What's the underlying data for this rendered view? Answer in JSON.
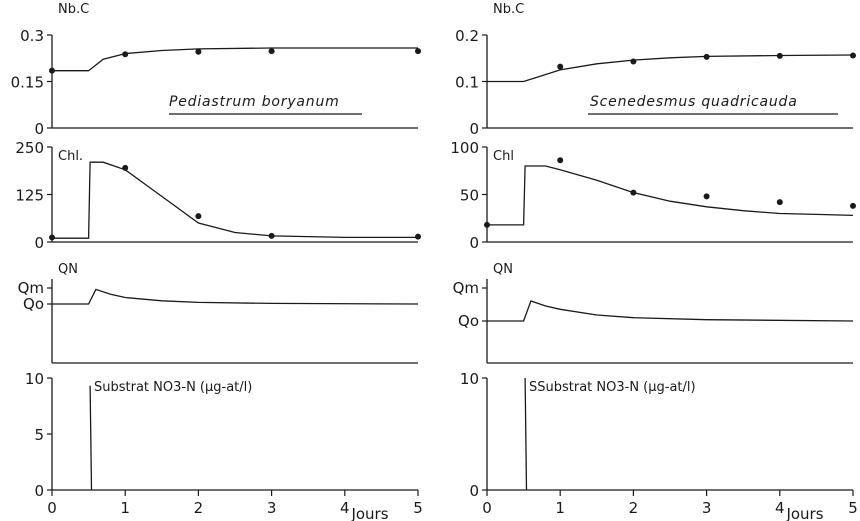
{
  "chart_data": [
    {
      "type": "line",
      "column": 0,
      "row": 0,
      "ylabel": "Nb.C",
      "ylim": [
        0,
        0.3
      ],
      "xlim": [
        0,
        5
      ],
      "yticks": [
        "0",
        "0.15",
        "0.3"
      ],
      "annotation": "Pediastrum boryanum",
      "curve": [
        [
          0,
          0.185
        ],
        [
          0.5,
          0.185
        ],
        [
          0.7,
          0.222
        ],
        [
          1,
          0.24
        ],
        [
          1.5,
          0.25
        ],
        [
          2,
          0.255
        ],
        [
          3,
          0.258
        ],
        [
          4,
          0.258
        ],
        [
          5,
          0.258
        ]
      ],
      "points": [
        [
          0,
          0.185
        ],
        [
          1,
          0.238
        ],
        [
          2,
          0.246
        ],
        [
          3,
          0.248
        ],
        [
          5,
          0.248
        ]
      ]
    },
    {
      "type": "line",
      "column": 0,
      "row": 1,
      "ylabel": "Chl.",
      "ylim": [
        0,
        250
      ],
      "xlim": [
        0,
        5
      ],
      "yticks": [
        "0",
        "125",
        "250"
      ],
      "curve": [
        [
          0,
          10
        ],
        [
          0.5,
          10
        ],
        [
          0.52,
          210
        ],
        [
          0.7,
          210
        ],
        [
          1,
          190
        ],
        [
          1.5,
          120
        ],
        [
          2,
          50
        ],
        [
          2.5,
          25
        ],
        [
          3,
          16
        ],
        [
          4,
          12
        ],
        [
          5,
          12
        ]
      ],
      "points": [
        [
          0,
          12
        ],
        [
          1,
          195
        ],
        [
          2,
          68
        ],
        [
          3,
          16
        ],
        [
          5,
          14
        ]
      ]
    },
    {
      "type": "line",
      "column": 0,
      "row": 2,
      "ylabel": "QN",
      "ytick_labels": [
        "Qm",
        "Qo"
      ],
      "xlim": [
        0,
        5
      ],
      "curve": [
        [
          0,
          0
        ],
        [
          0.5,
          0
        ],
        [
          0.6,
          0.45
        ],
        [
          0.8,
          0.3
        ],
        [
          1,
          0.2
        ],
        [
          1.5,
          0.1
        ],
        [
          2,
          0.05
        ],
        [
          3,
          0.02
        ],
        [
          5,
          0
        ]
      ]
    },
    {
      "type": "line",
      "column": 0,
      "row": 3,
      "ylabel": "Substrat  NO3-N  (µg-at/l)",
      "ylim": [
        0,
        10
      ],
      "xlim": [
        0,
        5
      ],
      "yticks": [
        "0",
        "5",
        "10"
      ],
      "xticks": [
        "0",
        "1",
        "2",
        "3",
        "4",
        "5"
      ],
      "xlabel": "Jours",
      "curve": [
        [
          0.52,
          9.3
        ],
        [
          0.54,
          0
        ]
      ]
    },
    {
      "type": "line",
      "column": 1,
      "row": 0,
      "ylabel": "Nb.C",
      "ylim": [
        0,
        0.2
      ],
      "xlim": [
        0,
        5
      ],
      "yticks": [
        "0",
        "0.1",
        "0.2"
      ],
      "annotation": "Scenedesmus quadricauda",
      "curve": [
        [
          0,
          0.1
        ],
        [
          0.5,
          0.1
        ],
        [
          0.7,
          0.11
        ],
        [
          1,
          0.125
        ],
        [
          1.5,
          0.138
        ],
        [
          2,
          0.146
        ],
        [
          2.5,
          0.151
        ],
        [
          3,
          0.154
        ],
        [
          4,
          0.156
        ],
        [
          5,
          0.157
        ]
      ],
      "points": [
        [
          1,
          0.132
        ],
        [
          2,
          0.143
        ],
        [
          3,
          0.153
        ],
        [
          4,
          0.155
        ],
        [
          5,
          0.156
        ]
      ]
    },
    {
      "type": "line",
      "column": 1,
      "row": 1,
      "ylabel": "Chl",
      "ylim": [
        0,
        100
      ],
      "xlim": [
        0,
        5
      ],
      "yticks": [
        "0",
        "50",
        "100"
      ],
      "curve": [
        [
          0,
          18
        ],
        [
          0.5,
          18
        ],
        [
          0.52,
          80
        ],
        [
          0.8,
          80
        ],
        [
          1,
          76
        ],
        [
          1.5,
          65
        ],
        [
          2,
          52
        ],
        [
          2.5,
          43
        ],
        [
          3,
          37
        ],
        [
          3.5,
          33
        ],
        [
          4,
          30
        ],
        [
          4.5,
          29
        ],
        [
          5,
          28
        ]
      ],
      "points": [
        [
          0,
          18
        ],
        [
          1,
          86
        ],
        [
          2,
          52
        ],
        [
          3,
          48
        ],
        [
          4,
          42
        ],
        [
          5,
          38
        ]
      ]
    },
    {
      "type": "line",
      "column": 1,
      "row": 2,
      "ylabel": "QN",
      "ytick_labels": [
        "Qm",
        "Qo"
      ],
      "xlim": [
        0,
        5
      ],
      "curve": [
        [
          0,
          0
        ],
        [
          0.5,
          0
        ],
        [
          0.6,
          0.6
        ],
        [
          0.8,
          0.45
        ],
        [
          1,
          0.35
        ],
        [
          1.5,
          0.18
        ],
        [
          2,
          0.1
        ],
        [
          3,
          0.04
        ],
        [
          5,
          0
        ]
      ]
    },
    {
      "type": "line",
      "column": 1,
      "row": 3,
      "ylabel": "SSubstrat  NO3-N  (µg-at/l)",
      "ylim": [
        0,
        10
      ],
      "xlim": [
        0,
        5
      ],
      "yticks": [
        "0",
        "10"
      ],
      "xticks": [
        "0",
        "1",
        "2",
        "3",
        "4",
        "5"
      ],
      "xlabel": "Jours",
      "curve": [
        [
          0.52,
          10
        ],
        [
          0.54,
          0
        ]
      ]
    }
  ]
}
